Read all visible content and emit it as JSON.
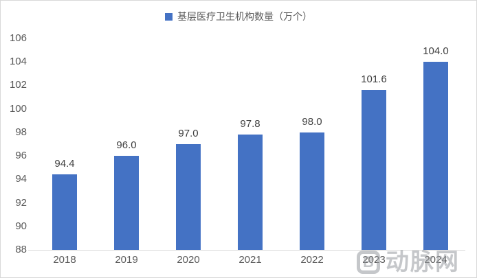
{
  "chart_data": {
    "type": "bar",
    "title": "",
    "legend": "基层医疗卫生机构数量（万个）",
    "legend_position": "top",
    "categories": [
      "2018",
      "2019",
      "2020",
      "2021",
      "2022",
      "2023",
      "2024"
    ],
    "values": [
      94.4,
      96.0,
      97.0,
      97.8,
      98.0,
      101.6,
      104.0
    ],
    "value_labels": [
      "94.4",
      "96.0",
      "97.0",
      "97.8",
      "98.0",
      "101.6",
      "104.0"
    ],
    "xlabel": "",
    "ylabel": "",
    "ylim": [
      88,
      106
    ],
    "yticks": [
      88,
      90,
      92,
      94,
      96,
      98,
      100,
      102,
      104,
      106
    ],
    "grid": false
  },
  "watermark": {
    "logo_letter": "B",
    "text": "动脉网"
  },
  "colors": {
    "bar": "#4472C4",
    "axis_text": "#595959",
    "data_label": "#404040",
    "axis_line": "#D9D9D9",
    "frame_border": "#D8D8D8",
    "watermark": "#979BA0"
  }
}
